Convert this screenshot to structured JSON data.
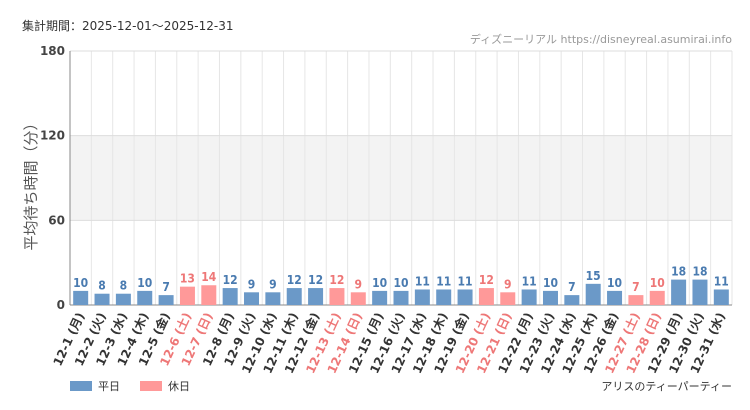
{
  "header": {
    "period_label": "集計期間：2025-12-01〜2025-12-31",
    "source": "ディズニーリアル https://disneyreal.asumirai.info"
  },
  "footer": {
    "attraction": "アリスのティーパーティー"
  },
  "colors": {
    "weekday": "#6b99c8",
    "holiday": "#ff9999",
    "weekday_text": "#4a7bb0",
    "holiday_text": "#ee7777",
    "band": "#f3f3f3",
    "grid": "#e6e6e6"
  },
  "chart_data": {
    "type": "bar",
    "title": "",
    "ylabel": "平均待ち時間（分）",
    "xlabel": "",
    "ylim": [
      0,
      180
    ],
    "yticks": [
      0,
      60,
      120,
      180
    ],
    "shaded_band": [
      60,
      120
    ],
    "legend": [
      {
        "name": "平日",
        "kind": "weekday"
      },
      {
        "name": "休日",
        "kind": "holiday"
      }
    ],
    "legend_position": "bottom-left",
    "categories": [
      "12-1 (月)",
      "12-2 (火)",
      "12-3 (水)",
      "12-4 (木)",
      "12-5 (金)",
      "12-6 (土)",
      "12-7 (日)",
      "12-8 (月)",
      "12-9 (火)",
      "12-10 (水)",
      "12-11 (木)",
      "12-12 (金)",
      "12-13 (土)",
      "12-14 (日)",
      "12-15 (月)",
      "12-16 (火)",
      "12-17 (水)",
      "12-18 (木)",
      "12-19 (金)",
      "12-20 (土)",
      "12-21 (日)",
      "12-22 (月)",
      "12-23 (火)",
      "12-24 (水)",
      "12-25 (木)",
      "12-26 (金)",
      "12-27 (土)",
      "12-28 (日)",
      "12-29 (月)",
      "12-30 (火)",
      "12-31 (水)"
    ],
    "values": [
      10,
      8,
      8,
      10,
      7,
      13,
      14,
      12,
      9,
      9,
      12,
      12,
      12,
      9,
      10,
      10,
      11,
      11,
      11,
      12,
      9,
      11,
      10,
      7,
      15,
      10,
      7,
      10,
      18,
      18,
      11
    ],
    "day_type": [
      "weekday",
      "weekday",
      "weekday",
      "weekday",
      "weekday",
      "holiday",
      "holiday",
      "weekday",
      "weekday",
      "weekday",
      "weekday",
      "weekday",
      "holiday",
      "holiday",
      "weekday",
      "weekday",
      "weekday",
      "weekday",
      "weekday",
      "holiday",
      "holiday",
      "weekday",
      "weekday",
      "weekday",
      "weekday",
      "weekday",
      "holiday",
      "holiday",
      "weekday",
      "weekday",
      "weekday"
    ]
  }
}
